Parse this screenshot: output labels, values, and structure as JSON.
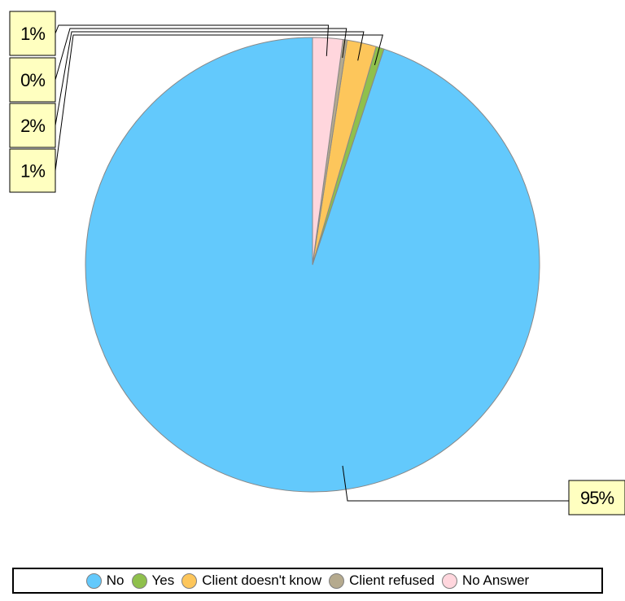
{
  "chart_data": {
    "type": "pie",
    "title": "",
    "start_angle": "12 o'clock, counter-clockwise",
    "slices": [
      {
        "name": "No",
        "value": 95,
        "label": "95%",
        "color": "#63c9fc"
      },
      {
        "name": "Yes",
        "value": 1,
        "label": "1%",
        "color": "#8fc04c"
      },
      {
        "name": "Client doesn't know",
        "value": 2,
        "label": "2%",
        "color": "#fdc65b"
      },
      {
        "name": "Client refused",
        "value": 0,
        "label": "0%",
        "color": "#b5aa8e"
      },
      {
        "name": "No Answer",
        "value": 1,
        "label": "1%",
        "color": "#ffd6dd"
      }
    ],
    "legend_position": "bottom",
    "slice_border_color": "#888888"
  }
}
